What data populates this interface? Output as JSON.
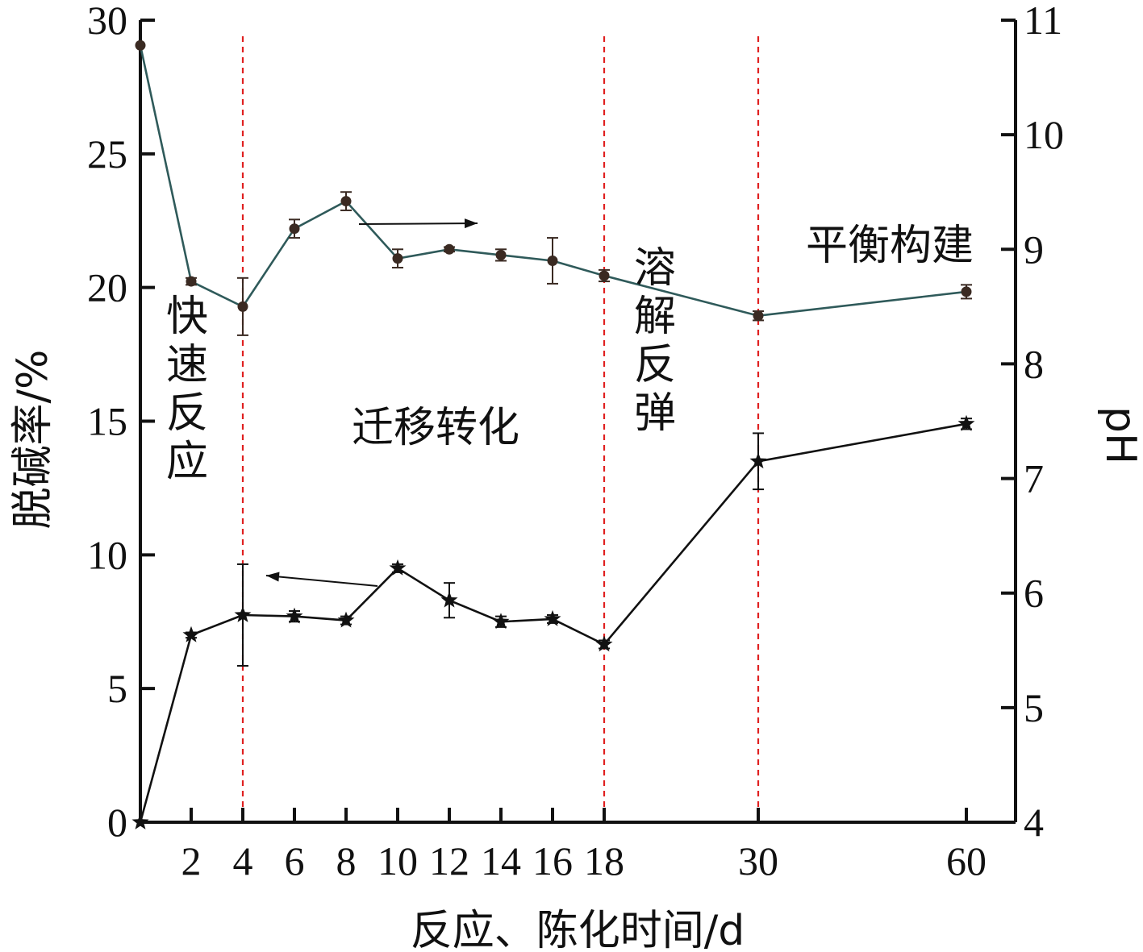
{
  "chart_data": {
    "type": "line",
    "xlabel": "反应、陈化时间/d",
    "ylabel_left": "脱碱率/%",
    "ylabel_right": "pH",
    "x_ticks": [
      "2",
      "4",
      "6",
      "8",
      "10",
      "12",
      "14",
      "16",
      "18",
      "30",
      "60"
    ],
    "y_left_ticks": [
      "0",
      "5",
      "10",
      "15",
      "20",
      "25",
      "30"
    ],
    "y_right_ticks": [
      "4",
      "5",
      "6",
      "7",
      "8",
      "9",
      "10",
      "11"
    ],
    "ylim_left": [
      0,
      30
    ],
    "ylim_right": [
      4,
      11
    ],
    "x_scale": "categorical-nonlinear",
    "phase_boundaries": [
      4,
      18,
      30
    ],
    "phase_labels": [
      {
        "id": "rapid",
        "text": "快速反应",
        "orientation": "vertical"
      },
      {
        "id": "migration",
        "text": "迁移转化",
        "orientation": "horizontal"
      },
      {
        "id": "rebound",
        "text": "溶解反弹",
        "orientation": "vertical"
      },
      {
        "id": "equilibrium",
        "text": "平衡构建",
        "orientation": "horizontal"
      }
    ],
    "series": [
      {
        "axis": "left",
        "marker": "star",
        "color": "#111111",
        "x": [
          0,
          2,
          4,
          6,
          8,
          10,
          12,
          14,
          16,
          18,
          30,
          60
        ],
        "values": [
          0,
          7.0,
          7.75,
          7.7,
          7.55,
          9.5,
          8.3,
          7.5,
          7.6,
          6.65,
          13.5,
          14.9
        ],
        "errors": [
          0,
          0.1,
          1.9,
          0.2,
          0.15,
          0.15,
          0.65,
          0.2,
          0.15,
          0.15,
          1.05,
          0.2
        ]
      },
      {
        "axis": "right",
        "marker": "circle",
        "color": "#3a2a22",
        "line_color": "#2f5a5a",
        "x": [
          0,
          2,
          4,
          6,
          8,
          10,
          12,
          14,
          16,
          18,
          30,
          60
        ],
        "values": [
          10.78,
          8.72,
          8.5,
          9.18,
          9.42,
          8.92,
          9.0,
          8.95,
          8.9,
          8.77,
          8.42,
          8.63
        ],
        "errors": [
          0,
          0.03,
          0.25,
          0.08,
          0.08,
          0.08,
          0.02,
          0.05,
          0.2,
          0.05,
          0.04,
          0.06
        ]
      }
    ],
    "colors": {
      "axis": "#111111",
      "phase_line": "#e02020"
    }
  }
}
